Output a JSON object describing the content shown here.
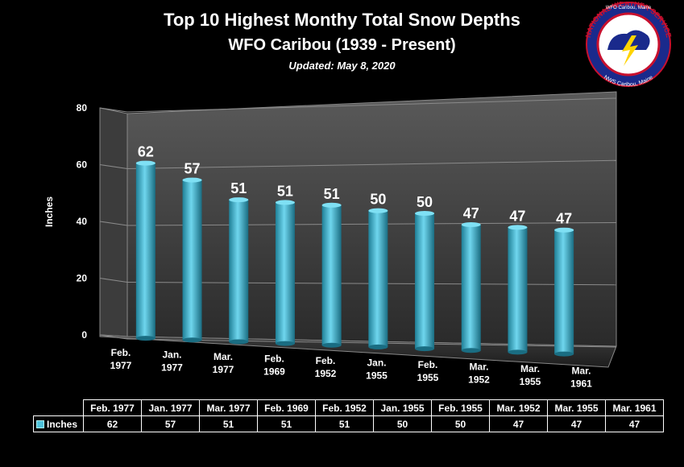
{
  "title": "Top 10 Highest Monthy Total Snow Depths",
  "subtitle": "WFO Caribou (1939 - Present)",
  "updated": "Updated:  May 8, 2020",
  "logo": {
    "top_text": "WFO Caribou, Maine",
    "ring_text": "NATIONAL WEATHER SERVICE",
    "bottom_text": "NWS Caribou, Maine"
  },
  "colors": {
    "bar": "#4fc3dc",
    "bar_dark": "#1f7f96",
    "background": "#000000"
  },
  "chart_data": {
    "type": "bar",
    "categories": [
      "Feb. 1977",
      "Jan. 1977",
      "Mar. 1977",
      "Feb. 1969",
      "Feb. 1952",
      "Jan. 1955",
      "Feb. 1955",
      "Mar. 1952",
      "Mar. 1955",
      "Mar. 1961"
    ],
    "axis_categories": [
      [
        "Feb.",
        "1977"
      ],
      [
        "Jan.",
        "1977"
      ],
      [
        "Mar.",
        "1977"
      ],
      [
        "Feb.",
        "1969"
      ],
      [
        "Feb.",
        "1952"
      ],
      [
        "Jan.",
        "1955"
      ],
      [
        "Feb.",
        "1955"
      ],
      [
        "Mar.",
        "1952"
      ],
      [
        "Mar.",
        "1955"
      ],
      [
        "Mar.",
        "1961"
      ]
    ],
    "series": [
      {
        "name": "Inches",
        "values": [
          62,
          57,
          51,
          51,
          51,
          50,
          50,
          47,
          47,
          47
        ]
      }
    ],
    "ylabel": "Inches",
    "ylim": [
      0,
      80
    ],
    "yticks": [
      0,
      20,
      40,
      60,
      80
    ],
    "grid": true,
    "legend": "data-table"
  }
}
